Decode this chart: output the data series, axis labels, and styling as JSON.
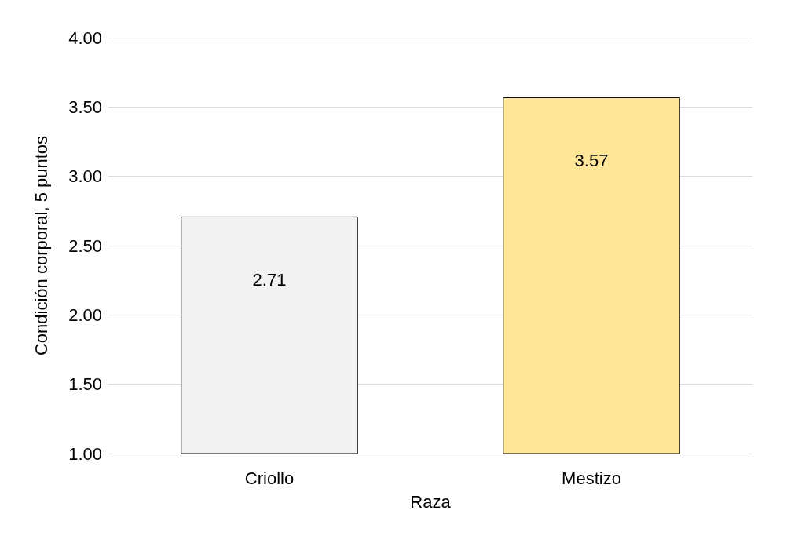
{
  "chart_data": {
    "type": "bar",
    "xlabel": "Raza",
    "ylabel": "Condición corporal, 5 puntos",
    "categories": [
      "Criollo",
      "Mestizo"
    ],
    "values": [
      2.71,
      3.57
    ],
    "colors": [
      "#f2f2f2",
      "#ffe699"
    ],
    "ylim": [
      1,
      4
    ],
    "yticks": [
      {
        "value": 1,
        "label": "1.00"
      },
      {
        "value": 1.5,
        "label": "1.50"
      },
      {
        "value": 2,
        "label": "2.00"
      },
      {
        "value": 2.5,
        "label": "2.50"
      },
      {
        "value": 3,
        "label": "3.00"
      },
      {
        "value": 3.5,
        "label": "3.50"
      },
      {
        "value": 4,
        "label": "4.00"
      }
    ],
    "grid": true,
    "data_labels": true
  }
}
